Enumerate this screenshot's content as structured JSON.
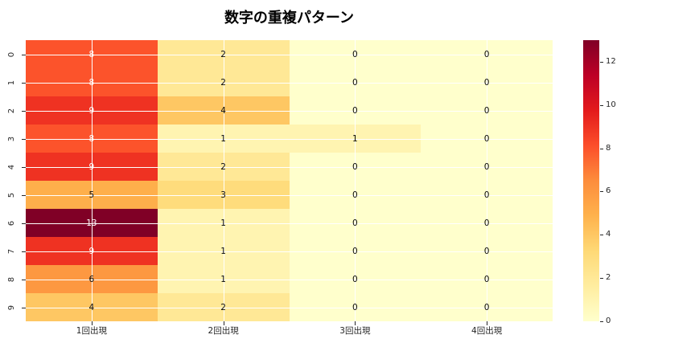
{
  "title": "数字の重複パターン",
  "chart_data": {
    "type": "heatmap",
    "title": "数字の重複パターン",
    "x_categories": [
      "1回出現",
      "2回出現",
      "3回出現",
      "4回出現"
    ],
    "y_categories": [
      "0",
      "1",
      "2",
      "3",
      "4",
      "5",
      "6",
      "7",
      "8",
      "9"
    ],
    "matrix": [
      [
        8,
        2,
        0,
        0
      ],
      [
        8,
        2,
        0,
        0
      ],
      [
        9,
        4,
        0,
        0
      ],
      [
        8,
        1,
        1,
        0
      ],
      [
        9,
        2,
        0,
        0
      ],
      [
        5,
        3,
        0,
        0
      ],
      [
        13,
        1,
        0,
        0
      ],
      [
        9,
        1,
        0,
        0
      ],
      [
        6,
        1,
        0,
        0
      ],
      [
        4,
        2,
        0,
        0
      ]
    ],
    "vmin": 0,
    "vmax": 13,
    "colorbar_ticks": [
      0,
      2,
      4,
      6,
      8,
      10,
      12
    ],
    "colormap_name": "YlOrRd",
    "colormap_stops": [
      "#ffffcc",
      "#ffeda0",
      "#fed976",
      "#feb24c",
      "#fd8d3c",
      "#fc4e2a",
      "#e31a1c",
      "#bd0026",
      "#800026"
    ],
    "grid_color": "#ffffff",
    "annotation_dark_color": "#0a0a0a",
    "annotation_light_color": "#ffffff",
    "background": "#ffffff",
    "legend_position": "right-colorbar",
    "grid": true
  }
}
